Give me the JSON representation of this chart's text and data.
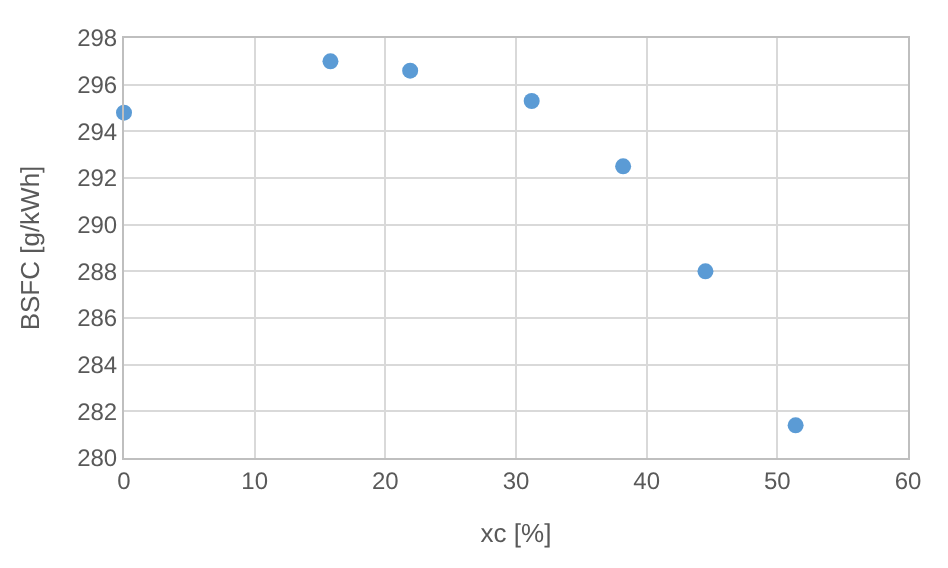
{
  "chart_data": {
    "type": "scatter",
    "xlabel": "xc [%]",
    "ylabel": "BSFC [g/kWh]",
    "x": [
      0,
      15.8,
      21.9,
      31.2,
      38.2,
      44.5,
      51.4
    ],
    "series": [
      {
        "color": "#5b9bd5",
        "values": [
          294.8,
          297.0,
          296.6,
          295.3,
          292.5,
          288.0,
          281.4
        ]
      }
    ],
    "xlim": [
      0,
      60
    ],
    "xticks": [
      0,
      10,
      20,
      30,
      40,
      50,
      60
    ],
    "ylim": [
      280,
      298
    ],
    "yticks": [
      280,
      282,
      284,
      286,
      288,
      290,
      292,
      294,
      296,
      298
    ],
    "grid": true,
    "legend": false,
    "marker": "circle"
  }
}
